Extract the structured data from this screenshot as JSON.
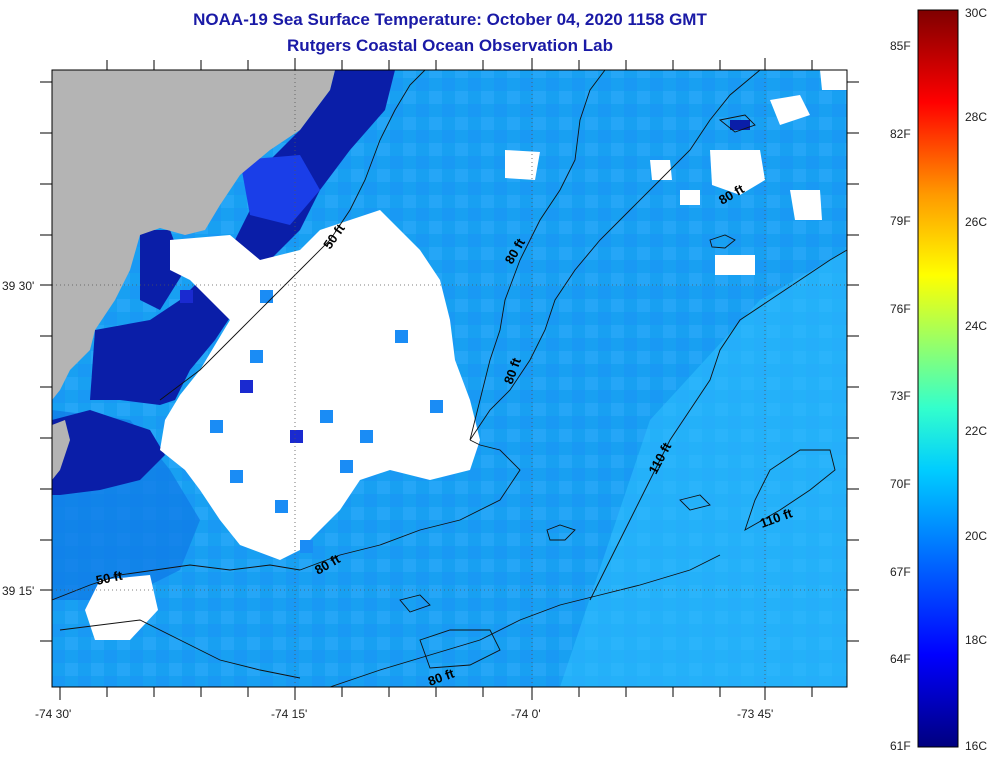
{
  "title": {
    "line1": "NOAA-19 Sea Surface Temperature:  October 04, 2020 1158 GMT",
    "line2": "Rutgers Coastal Ocean Observation Lab"
  },
  "map": {
    "land_color": "#b4b4b4",
    "no_data_color": "#ffffff",
    "longitude_labels": [
      "-74 30'",
      "-74 15'",
      "-74 0'",
      "-73 45'"
    ],
    "latitude_labels": [
      "39 30'",
      "39 15'"
    ],
    "contour_labels": [
      "50 ft",
      "80 ft",
      "80 ft",
      "80 ft",
      "110 ft",
      "110 ft",
      "50 ft",
      "80 ft",
      "80 ft"
    ]
  },
  "colorbar": {
    "fahrenheit_labels": [
      "85F",
      "82F",
      "79F",
      "76F",
      "73F",
      "70F",
      "67F",
      "64F",
      "61F"
    ],
    "celsius_labels": [
      "30C",
      "28C",
      "26C",
      "24C",
      "22C",
      "20C",
      "18C",
      "16C"
    ],
    "colors": [
      "#00007f",
      "#0000ff",
      "#007fff",
      "#00ffff",
      "#7fff7f",
      "#ffff00",
      "#ff7f00",
      "#ff0000",
      "#7f0000"
    ]
  }
}
